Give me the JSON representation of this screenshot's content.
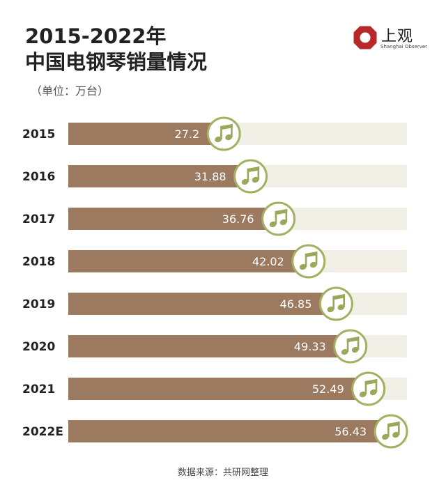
{
  "header": {
    "title_line1": "2015-2022年",
    "title_line2": "中国电钢琴销量情况",
    "unit": "（单位：万台）"
  },
  "logo": {
    "icon": "shanghai-observer-logo-icon",
    "text_cn": "上观",
    "text_en": "Shanghai Observer"
  },
  "chart_data": {
    "type": "bar",
    "orientation": "horizontal",
    "title": "2015-2022年 中国电钢琴销量情况",
    "ylabel": "（单位：万台）",
    "categories": [
      "2015",
      "2016",
      "2017",
      "2018",
      "2019",
      "2020",
      "2021",
      "2022E"
    ],
    "values": [
      27.2,
      31.88,
      36.76,
      42.02,
      46.85,
      49.33,
      52.49,
      56.43
    ],
    "value_labels": [
      "27.2",
      "31.88",
      "36.76",
      "42.02",
      "46.85",
      "49.33",
      "52.49",
      "56.43"
    ],
    "xlim": [
      0,
      56.43
    ],
    "marker_icon": "music-note-icon",
    "colors": {
      "bar": "#9c7a60",
      "track": "#f2efe6",
      "marker_ring": "#a3b062",
      "marker_fill": "#ffffff",
      "note": "#9aa85a",
      "label": "#ffffff",
      "category": "#222222"
    }
  },
  "footer": {
    "source": "数据来源：共研网整理"
  }
}
